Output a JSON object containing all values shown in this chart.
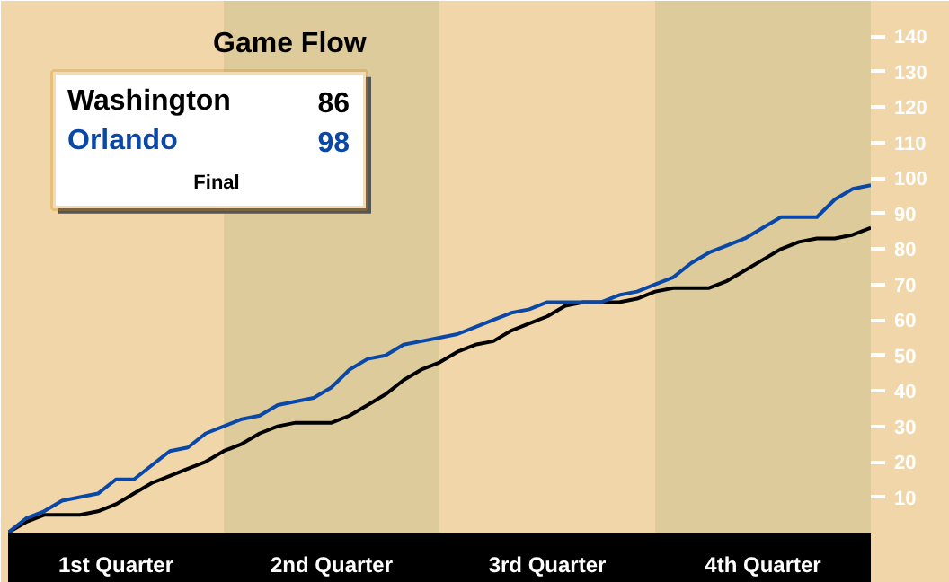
{
  "chart_data": {
    "type": "line",
    "title": "Game Flow",
    "annotations": [
      "86",
      "98",
      "Final",
      "1st Quarter",
      "2nd Quarter",
      "3rd Quarter",
      "4th Quarter"
    ],
    "categories": [
      null,
      null,
      null,
      null,
      null,
      null,
      null,
      null,
      null,
      null,
      null,
      null,
      null,
      null,
      null,
      null,
      null,
      null,
      null,
      null,
      null,
      null,
      null,
      null,
      null,
      null,
      null,
      null,
      null,
      null,
      null,
      null,
      null,
      null,
      null,
      null,
      null,
      null,
      null,
      null,
      null,
      null,
      null,
      null,
      null,
      null,
      null,
      null,
      null
    ],
    "ylim": [
      0,
      150
    ],
    "yticks": [
      10,
      20,
      30,
      40,
      50,
      60,
      70,
      80,
      90,
      100,
      110,
      120,
      130,
      140
    ],
    "grid": false,
    "marker": "none",
    "line_style": "solid",
    "series": [
      {
        "name": "Washington",
        "color": "#000000",
        "values": [
          0,
          3,
          5,
          5,
          5,
          6,
          8,
          11,
          14,
          16,
          18,
          20,
          23,
          25,
          28,
          30,
          31,
          31,
          31,
          33,
          36,
          39,
          43,
          46,
          48,
          51,
          53,
          54,
          57,
          59,
          61,
          64,
          65,
          65,
          65,
          66,
          68,
          69,
          69,
          69,
          71,
          74,
          77,
          80,
          82,
          83,
          83,
          84,
          86
        ]
      },
      {
        "name": "Orlando",
        "color": "#0a48a8",
        "values": [
          0,
          4,
          6,
          9,
          10,
          11,
          15,
          15,
          19,
          23,
          24,
          28,
          30,
          32,
          33,
          36,
          37,
          38,
          41,
          46,
          49,
          50,
          53,
          54,
          55,
          56,
          58,
          60,
          62,
          63,
          65,
          65,
          65,
          65,
          67,
          68,
          70,
          72,
          76,
          79,
          81,
          83,
          86,
          89,
          89,
          89,
          94,
          97,
          98
        ]
      }
    ]
  }
}
